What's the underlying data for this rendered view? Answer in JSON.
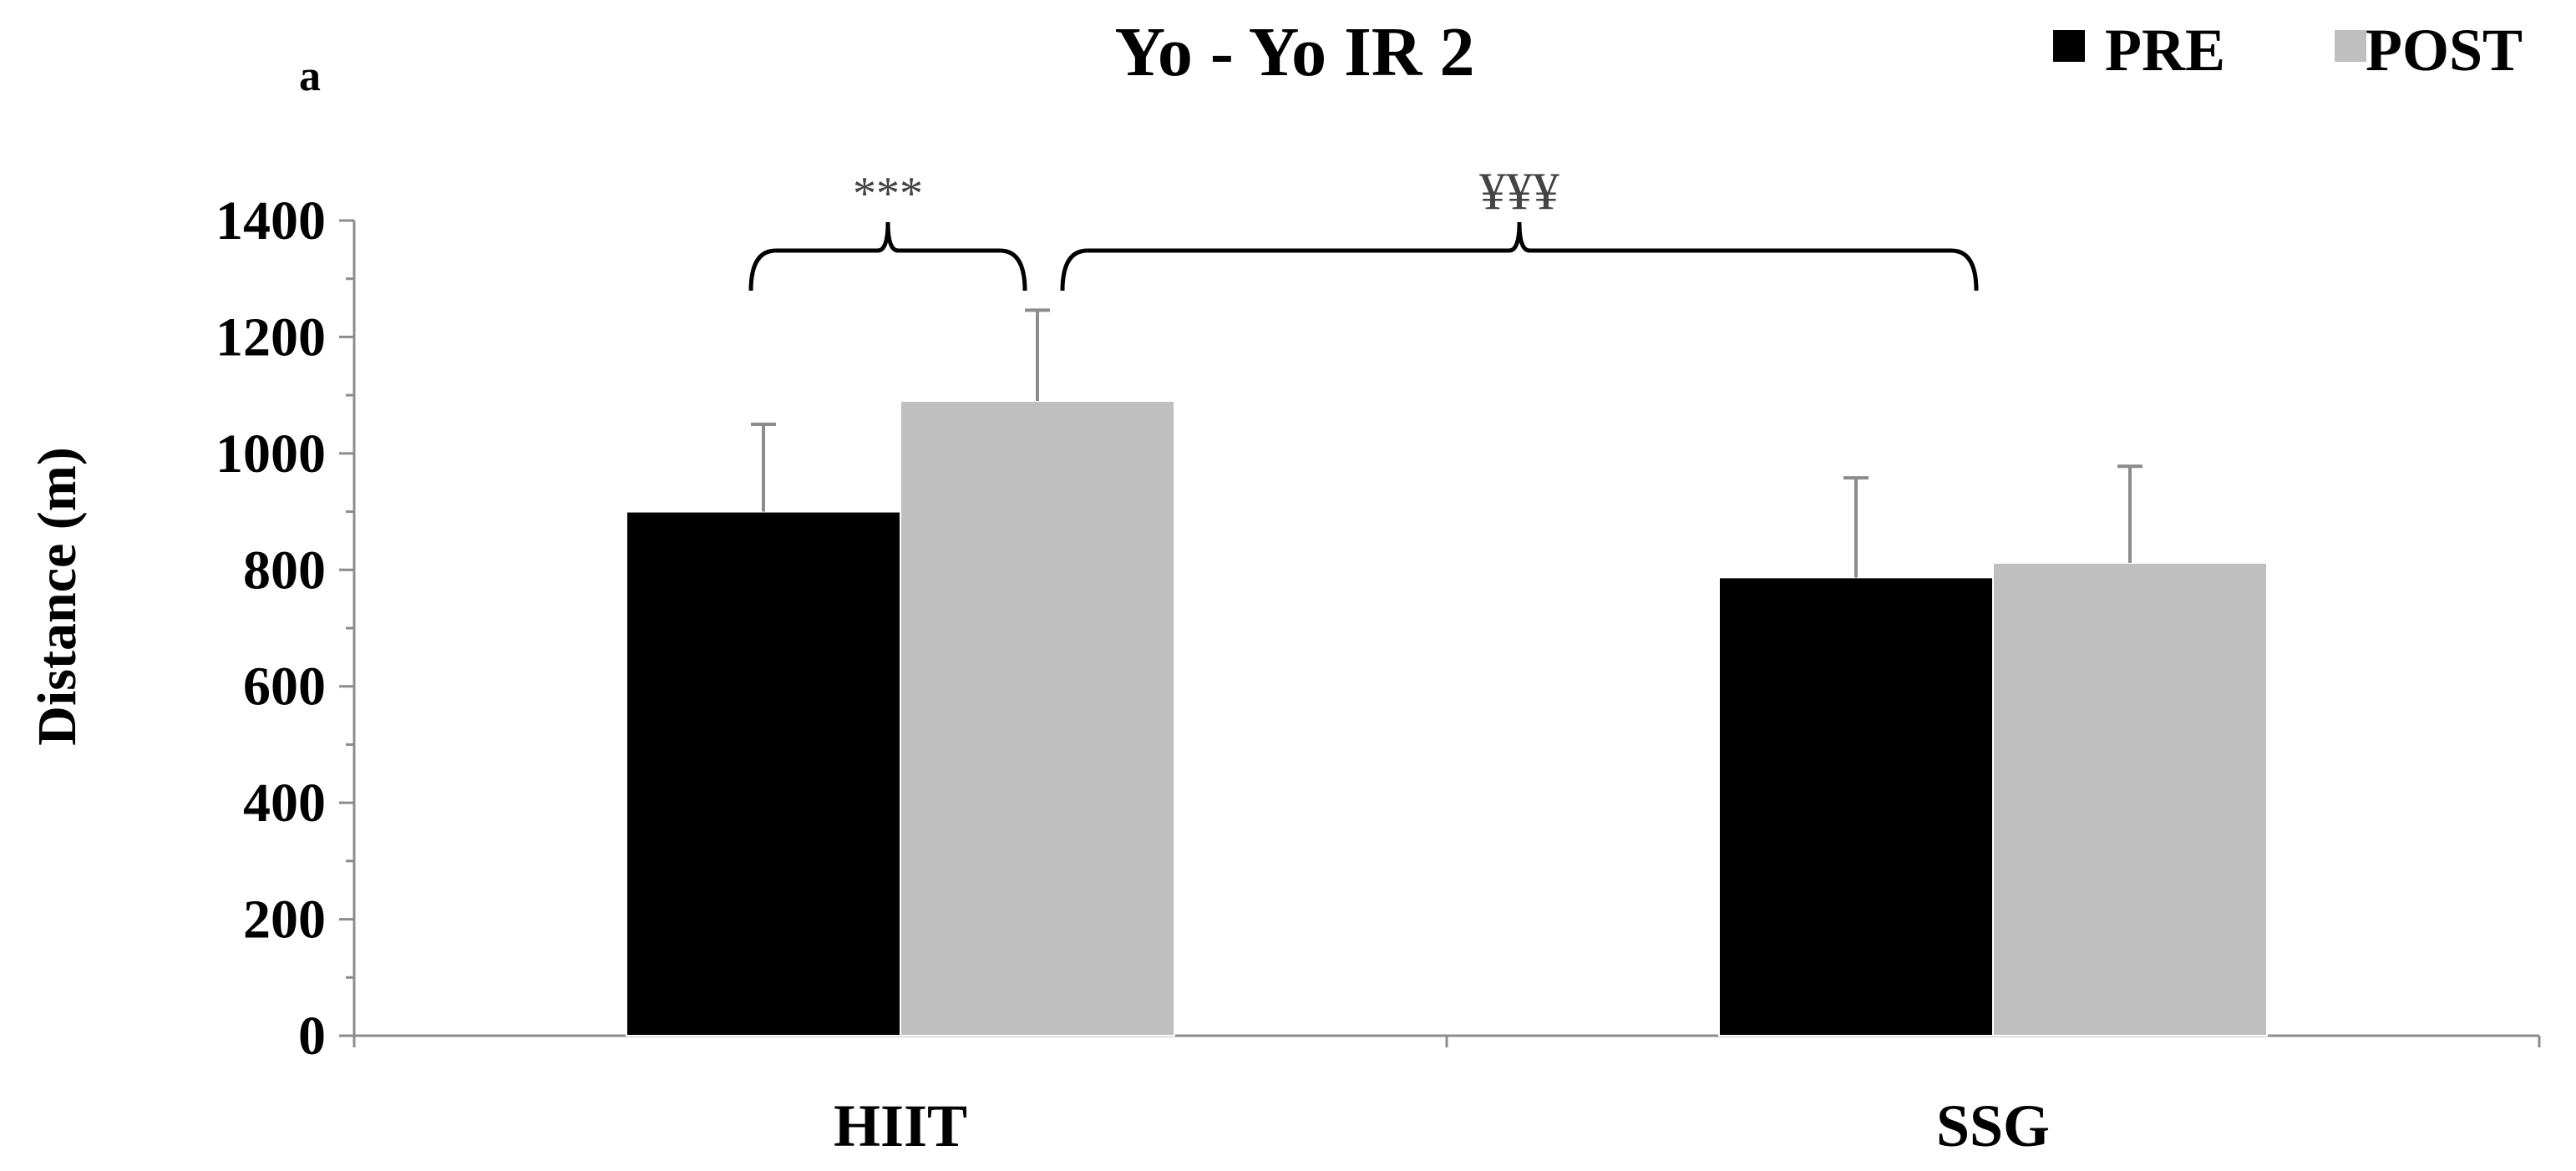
{
  "panel_label": "a",
  "chart_data": {
    "type": "bar",
    "title": "Yo - Yo IR 2",
    "ylabel": "Distance (m)",
    "xlabel": "",
    "categories": [
      "HIIT",
      "SSG"
    ],
    "ylim": [
      0,
      1400
    ],
    "yticks": [
      0,
      200,
      400,
      600,
      800,
      1000,
      1200,
      1400
    ],
    "grid": false,
    "legend": "top-right",
    "series": [
      {
        "name": "PRE",
        "color": "#000000",
        "values": [
          900,
          787
        ],
        "error_upper": [
          150,
          171
        ]
      },
      {
        "name": "POST",
        "color": "#bfbfbf",
        "values": [
          1090,
          812
        ],
        "error_upper": [
          156,
          166
        ]
      }
    ],
    "annotations": [
      {
        "text": "***",
        "from": {
          "category": 0,
          "series": 0
        },
        "to": {
          "category": 0,
          "series": 1
        }
      },
      {
        "text": "¥¥¥",
        "from": {
          "category": 0,
          "series": 1
        },
        "to": {
          "category": 1,
          "series": 1
        }
      }
    ]
  }
}
